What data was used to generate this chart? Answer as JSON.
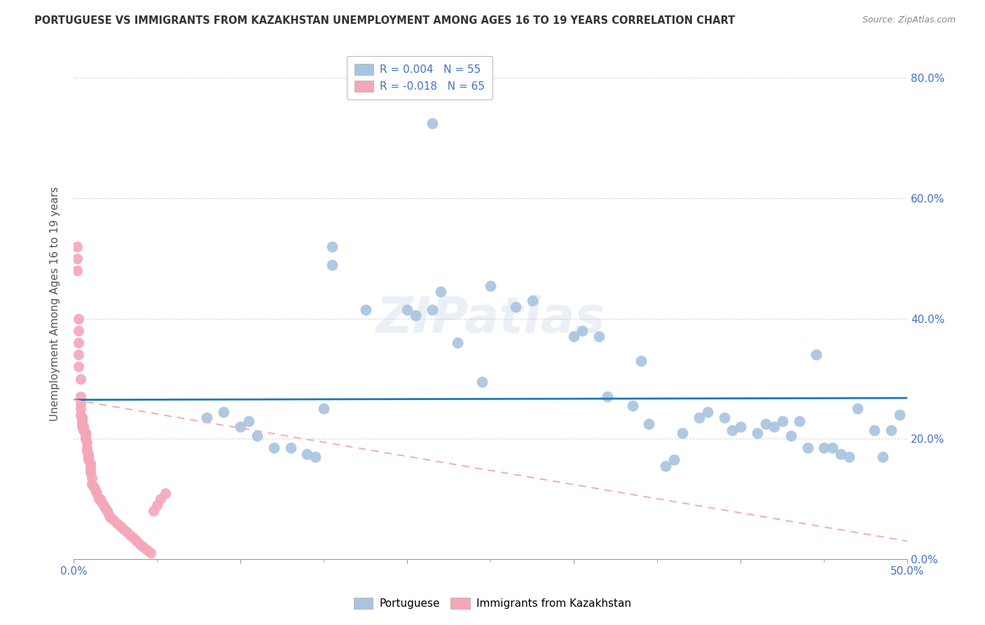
{
  "title": "PORTUGUESE VS IMMIGRANTS FROM KAZAKHSTAN UNEMPLOYMENT AMONG AGES 16 TO 19 YEARS CORRELATION CHART",
  "source": "Source: ZipAtlas.com",
  "ylabel": "Unemployment Among Ages 16 to 19 years",
  "xlim": [
    0.0,
    0.5
  ],
  "ylim": [
    0.0,
    0.85
  ],
  "xticks": [
    0.0,
    0.1,
    0.2,
    0.3,
    0.4,
    0.5
  ],
  "yticks": [
    0.0,
    0.2,
    0.4,
    0.6,
    0.8
  ],
  "ytick_labels_right": [
    "0.0%",
    "20.0%",
    "40.0%",
    "60.0%",
    "80.0%"
  ],
  "xtick_labels": [
    "0.0%",
    "",
    "",
    "",
    "",
    "50.0%"
  ],
  "blue_color": "#a8c4e0",
  "pink_color": "#f4a7b9",
  "line_blue": "#1f77b4",
  "line_pink": "#f0b0c0",
  "watermark": "ZIPatlas",
  "portuguese_x": [
    0.215,
    0.155,
    0.155,
    0.175,
    0.2,
    0.205,
    0.215,
    0.22,
    0.23,
    0.245,
    0.25,
    0.265,
    0.275,
    0.3,
    0.305,
    0.315,
    0.32,
    0.335,
    0.34,
    0.345,
    0.355,
    0.36,
    0.365,
    0.375,
    0.38,
    0.39,
    0.395,
    0.4,
    0.41,
    0.415,
    0.42,
    0.425,
    0.43,
    0.435,
    0.44,
    0.445,
    0.45,
    0.455,
    0.46,
    0.465,
    0.47,
    0.48,
    0.485,
    0.49,
    0.495,
    0.08,
    0.09,
    0.1,
    0.105,
    0.11,
    0.12,
    0.13,
    0.14,
    0.145,
    0.15
  ],
  "portuguese_y": [
    0.725,
    0.49,
    0.52,
    0.415,
    0.415,
    0.405,
    0.415,
    0.445,
    0.36,
    0.295,
    0.455,
    0.42,
    0.43,
    0.37,
    0.38,
    0.37,
    0.27,
    0.255,
    0.33,
    0.225,
    0.155,
    0.165,
    0.21,
    0.235,
    0.245,
    0.235,
    0.215,
    0.22,
    0.21,
    0.225,
    0.22,
    0.23,
    0.205,
    0.23,
    0.185,
    0.34,
    0.185,
    0.185,
    0.175,
    0.17,
    0.25,
    0.215,
    0.17,
    0.215,
    0.24,
    0.235,
    0.245,
    0.22,
    0.23,
    0.205,
    0.185,
    0.185,
    0.175,
    0.17,
    0.25
  ],
  "kazakhstan_x": [
    0.002,
    0.002,
    0.002,
    0.003,
    0.003,
    0.003,
    0.003,
    0.003,
    0.004,
    0.004,
    0.004,
    0.004,
    0.004,
    0.005,
    0.005,
    0.005,
    0.005,
    0.005,
    0.005,
    0.006,
    0.006,
    0.006,
    0.007,
    0.007,
    0.007,
    0.007,
    0.008,
    0.008,
    0.008,
    0.009,
    0.009,
    0.009,
    0.01,
    0.01,
    0.01,
    0.01,
    0.011,
    0.011,
    0.012,
    0.013,
    0.014,
    0.015,
    0.016,
    0.017,
    0.018,
    0.019,
    0.02,
    0.021,
    0.022,
    0.024,
    0.026,
    0.028,
    0.03,
    0.032,
    0.034,
    0.036,
    0.038,
    0.04,
    0.042,
    0.044,
    0.046,
    0.048,
    0.05,
    0.052,
    0.055
  ],
  "kazakhstan_y": [
    0.52,
    0.5,
    0.48,
    0.4,
    0.38,
    0.36,
    0.34,
    0.32,
    0.3,
    0.27,
    0.26,
    0.25,
    0.24,
    0.235,
    0.235,
    0.23,
    0.23,
    0.225,
    0.22,
    0.22,
    0.22,
    0.215,
    0.21,
    0.21,
    0.205,
    0.2,
    0.195,
    0.185,
    0.18,
    0.175,
    0.17,
    0.165,
    0.16,
    0.155,
    0.15,
    0.145,
    0.135,
    0.125,
    0.12,
    0.115,
    0.11,
    0.1,
    0.1,
    0.095,
    0.09,
    0.085,
    0.08,
    0.075,
    0.07,
    0.065,
    0.06,
    0.055,
    0.05,
    0.045,
    0.04,
    0.035,
    0.03,
    0.025,
    0.02,
    0.015,
    0.01,
    0.08,
    0.09,
    0.1,
    0.11
  ],
  "port_trend_y_start": 0.265,
  "port_trend_y_end": 0.268,
  "kaz_trend_x_start": 0.0,
  "kaz_trend_x_end": 0.5,
  "kaz_trend_y_start": 0.265,
  "kaz_trend_y_end": 0.03
}
